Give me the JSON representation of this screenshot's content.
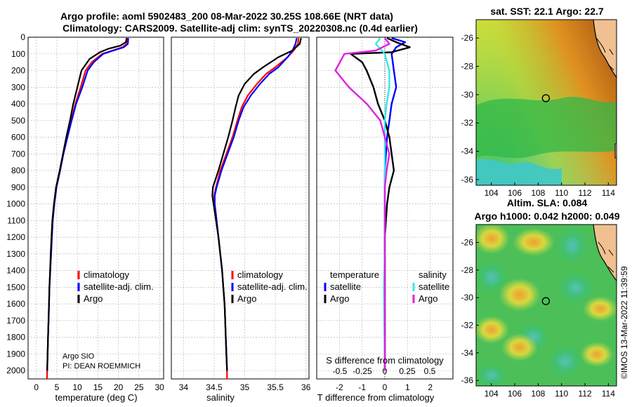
{
  "title_line1": "Argo profile: aoml 5902483_200 08-Mar-2022 30.25S 108.66E (NRT data)",
  "title_line2": "Climatology: CARS2009. Satellite-adj clim: synTS_20220308.nc (0.4d earlier)",
  "copyright": "©IMOS 13-Mar-2022 11:39:59",
  "argo_center": "Argo SIO",
  "argo_pi": "PI: DEAN ROEMMICH",
  "colors": {
    "climatology": "#ff0000",
    "satellite": "#0000ff",
    "argo": "#000000",
    "salinity_argo": "#e020e0",
    "salinity_satellite": "#33e8e8"
  },
  "chart_data": [
    {
      "type": "line",
      "id": "temperature",
      "xlabel": "temperature (deg C)",
      "ylabel": "depth",
      "xlim": [
        -2,
        31
      ],
      "ylim": [
        0,
        2050
      ],
      "xticks": [
        0,
        5,
        10,
        15,
        20,
        25,
        30
      ],
      "yticks": [
        0,
        100,
        200,
        300,
        400,
        500,
        600,
        700,
        800,
        900,
        1000,
        1100,
        1200,
        1300,
        1400,
        1500,
        1600,
        1700,
        1800,
        1900,
        2000
      ],
      "legend": [
        "climatology",
        "satellite-adj. clim.",
        "Argo"
      ],
      "series": [
        {
          "name": "climatology",
          "points": [
            [
              22.1,
              5
            ],
            [
              22.0,
              40
            ],
            [
              21.0,
              60
            ],
            [
              18.5,
              80
            ],
            [
              16.0,
              100
            ],
            [
              13.5,
              150
            ],
            [
              12.0,
              200
            ],
            [
              10.8,
              300
            ],
            [
              9.5,
              400
            ],
            [
              8.5,
              500
            ],
            [
              7.5,
              600
            ],
            [
              6.6,
              700
            ],
            [
              5.8,
              800
            ],
            [
              4.9,
              900
            ],
            [
              4.4,
              1000
            ],
            [
              4.0,
              1100
            ],
            [
              3.8,
              1200
            ],
            [
              3.6,
              1300
            ],
            [
              3.4,
              1400
            ],
            [
              3.2,
              1500
            ],
            [
              3.1,
              1600
            ],
            [
              3.0,
              1700
            ],
            [
              2.85,
              1800
            ],
            [
              2.75,
              1900
            ],
            [
              2.65,
              2000
            ],
            [
              2.6,
              2050
            ]
          ]
        },
        {
          "name": "satellite-adj. clim.",
          "points": [
            [
              22.4,
              5
            ],
            [
              22.3,
              40
            ],
            [
              21.3,
              60
            ],
            [
              18.8,
              80
            ],
            [
              16.3,
              100
            ],
            [
              14.0,
              150
            ],
            [
              12.5,
              200
            ],
            [
              11.2,
              300
            ],
            [
              9.7,
              400
            ],
            [
              8.6,
              500
            ],
            [
              7.6,
              600
            ],
            [
              6.6,
              700
            ],
            [
              5.8,
              800
            ],
            [
              4.9,
              900
            ],
            [
              4.4,
              1000
            ],
            [
              4.0,
              1100
            ],
            [
              3.8,
              1200
            ],
            [
              3.6,
              1300
            ],
            [
              3.4,
              1400
            ],
            [
              3.2,
              1500
            ],
            [
              3.1,
              1600
            ],
            [
              3.0,
              1700
            ],
            [
              2.85,
              1800
            ],
            [
              2.75,
              1900
            ],
            [
              2.65,
              2000
            ]
          ]
        },
        {
          "name": "Argo",
          "points": [
            [
              22.0,
              5
            ],
            [
              21.8,
              30
            ],
            [
              20.5,
              50
            ],
            [
              17.5,
              70
            ],
            [
              15.5,
              90
            ],
            [
              13.0,
              130
            ],
            [
              11.0,
              200
            ],
            [
              10.0,
              300
            ],
            [
              9.0,
              400
            ],
            [
              8.2,
              500
            ],
            [
              7.3,
              600
            ],
            [
              6.5,
              700
            ],
            [
              5.7,
              800
            ],
            [
              4.8,
              900
            ],
            [
              4.3,
              1000
            ],
            [
              3.9,
              1100
            ],
            [
              3.7,
              1200
            ],
            [
              3.5,
              1300
            ],
            [
              3.35,
              1400
            ],
            [
              3.2,
              1500
            ],
            [
              3.1,
              1600
            ],
            [
              2.95,
              1700
            ],
            [
              2.85,
              1800
            ],
            [
              2.75,
              1900
            ],
            [
              2.65,
              2000
            ]
          ]
        }
      ]
    },
    {
      "type": "line",
      "id": "salinity",
      "xlabel": "salinity",
      "xlim": [
        33.8,
        36.05
      ],
      "ylim": [
        0,
        2050
      ],
      "xticks": [
        34,
        34.5,
        35,
        35.5,
        36
      ],
      "xticklabels": [
        "34",
        "34.5",
        "35",
        "35.5",
        "36"
      ],
      "legend": [
        "climatology",
        "satellite-adj. clim.",
        "Argo"
      ],
      "series": [
        {
          "name": "climatology",
          "points": [
            [
              35.88,
              5
            ],
            [
              35.87,
              40
            ],
            [
              35.8,
              80
            ],
            [
              35.7,
              120
            ],
            [
              35.5,
              180
            ],
            [
              35.35,
              220
            ],
            [
              35.2,
              280
            ],
            [
              35.05,
              350
            ],
            [
              34.95,
              420
            ],
            [
              34.88,
              500
            ],
            [
              34.8,
              600
            ],
            [
              34.7,
              700
            ],
            [
              34.6,
              800
            ],
            [
              34.53,
              900
            ],
            [
              34.5,
              950
            ],
            [
              34.51,
              1000
            ],
            [
              34.54,
              1100
            ],
            [
              34.57,
              1200
            ],
            [
              34.6,
              1300
            ],
            [
              34.63,
              1400
            ],
            [
              34.65,
              1500
            ],
            [
              34.67,
              1600
            ],
            [
              34.68,
              1700
            ],
            [
              34.69,
              1800
            ],
            [
              34.7,
              1900
            ],
            [
              34.71,
              2000
            ],
            [
              34.71,
              2050
            ]
          ]
        },
        {
          "name": "satellite-adj. clim.",
          "points": [
            [
              35.85,
              5
            ],
            [
              35.83,
              40
            ],
            [
              35.78,
              80
            ],
            [
              35.7,
              120
            ],
            [
              35.55,
              180
            ],
            [
              35.4,
              220
            ],
            [
              35.25,
              280
            ],
            [
              35.1,
              350
            ],
            [
              34.98,
              420
            ],
            [
              34.9,
              500
            ],
            [
              34.82,
              600
            ],
            [
              34.72,
              700
            ],
            [
              34.62,
              800
            ],
            [
              34.54,
              900
            ],
            [
              34.51,
              950
            ],
            [
              34.51,
              1000
            ],
            [
              34.54,
              1100
            ],
            [
              34.57,
              1200
            ],
            [
              34.6,
              1300
            ],
            [
              34.63,
              1400
            ],
            [
              34.65,
              1500
            ],
            [
              34.67,
              1600
            ],
            [
              34.68,
              1700
            ],
            [
              34.69,
              1800
            ],
            [
              34.7,
              1900
            ],
            [
              34.71,
              2000
            ]
          ]
        },
        {
          "name": "Argo",
          "points": [
            [
              35.92,
              5
            ],
            [
              35.9,
              40
            ],
            [
              35.78,
              80
            ],
            [
              35.55,
              120
            ],
            [
              35.3,
              180
            ],
            [
              35.15,
              220
            ],
            [
              35.0,
              280
            ],
            [
              34.9,
              350
            ],
            [
              34.85,
              420
            ],
            [
              34.8,
              500
            ],
            [
              34.73,
              600
            ],
            [
              34.65,
              700
            ],
            [
              34.57,
              800
            ],
            [
              34.48,
              900
            ],
            [
              34.47,
              950
            ],
            [
              34.49,
              1000
            ],
            [
              34.53,
              1100
            ],
            [
              34.57,
              1200
            ],
            [
              34.6,
              1300
            ],
            [
              34.63,
              1400
            ],
            [
              34.65,
              1500
            ],
            [
              34.67,
              1600
            ],
            [
              34.68,
              1700
            ],
            [
              34.69,
              1800
            ],
            [
              34.7,
              1900
            ],
            [
              34.71,
              2000
            ]
          ]
        }
      ]
    },
    {
      "type": "line",
      "id": "differences",
      "xlabel": "T difference from climatology",
      "xlabel2": "S difference from climatology",
      "xlim": [
        -3,
        3
      ],
      "ylim": [
        0,
        2050
      ],
      "xticks": [
        -2,
        -1,
        0,
        1,
        2
      ],
      "xticks_S": [
        "-0.5",
        "-0.25",
        "0",
        "0.25",
        "0.5"
      ],
      "legend_temperature": {
        "title": "temperature",
        "items": [
          "satellite",
          "Argo"
        ]
      },
      "legend_salinity": {
        "title": "salinity",
        "items": [
          "satellite",
          "Argo"
        ]
      },
      "series": [
        {
          "name": "temperature satellite",
          "points": [
            [
              0.3,
              5
            ],
            [
              0.9,
              30
            ],
            [
              0.5,
              60
            ],
            [
              0.3,
              100
            ],
            [
              0.4,
              200
            ],
            [
              0.5,
              300
            ],
            [
              0.3,
              400
            ],
            [
              0.2,
              500
            ],
            [
              0.1,
              600
            ],
            [
              0.05,
              700
            ],
            [
              0.0,
              800
            ],
            [
              0.0,
              900
            ],
            [
              0.0,
              1000
            ],
            [
              0.0,
              1200
            ],
            [
              0.0,
              1500
            ],
            [
              0.0,
              2000
            ]
          ]
        },
        {
          "name": "temperature Argo",
          "points": [
            [
              0.1,
              5
            ],
            [
              0.5,
              30
            ],
            [
              1.1,
              60
            ],
            [
              0.3,
              90
            ],
            [
              -1.5,
              100
            ],
            [
              -1.0,
              150
            ],
            [
              -0.8,
              200
            ],
            [
              -0.5,
              300
            ],
            [
              -0.3,
              400
            ],
            [
              0.0,
              500
            ],
            [
              0.2,
              600
            ],
            [
              0.3,
              700
            ],
            [
              0.4,
              800
            ],
            [
              0.2,
              900
            ],
            [
              0.1,
              1000
            ],
            [
              0.0,
              1200
            ],
            [
              0.0,
              1500
            ],
            [
              0.0,
              2000
            ]
          ]
        },
        {
          "name": "salinity satellite",
          "points": [
            [
              -0.05,
              5
            ],
            [
              -0.1,
              40
            ],
            [
              0.0,
              100
            ],
            [
              0.05,
              200
            ],
            [
              0.05,
              300
            ],
            [
              0.02,
              400
            ],
            [
              0.0,
              500
            ],
            [
              0.0,
              600
            ],
            [
              0.0,
              700
            ],
            [
              0.0,
              800
            ],
            [
              0.0,
              1000
            ],
            [
              0.0,
              1300
            ],
            [
              -0.01,
              1500
            ],
            [
              0.0,
              2000
            ]
          ]
        },
        {
          "name": "salinity Argo",
          "points": [
            [
              0.0,
              5
            ],
            [
              0.05,
              40
            ],
            [
              -0.1,
              80
            ],
            [
              -0.45,
              100
            ],
            [
              -0.55,
              200
            ],
            [
              -0.4,
              300
            ],
            [
              -0.2,
              400
            ],
            [
              -0.05,
              500
            ],
            [
              0.0,
              600
            ],
            [
              0.05,
              700
            ],
            [
              0.02,
              800
            ],
            [
              0.0,
              900
            ],
            [
              0.0,
              1000
            ],
            [
              0.0,
              1300
            ],
            [
              0.0,
              1500
            ],
            [
              0.0,
              2000
            ]
          ]
        }
      ]
    },
    {
      "type": "heatmap",
      "id": "sst_map",
      "title": "sat. SST: 22.1 Argo: 22.7",
      "xlim": [
        102.7,
        114.7
      ],
      "ylim": [
        -36.4,
        -24.7
      ],
      "xticks": [
        104,
        106,
        108,
        110,
        112,
        114
      ],
      "yticks": [
        -26,
        -28,
        -30,
        -32,
        -34,
        -36
      ],
      "marker": [
        108.66,
        -30.25
      ]
    },
    {
      "type": "heatmap",
      "id": "sla_map",
      "title_line1": "Altim. SLA: 0.084",
      "title_line2": "Argo h1000: 0.042 h2000: 0.049",
      "xlim": [
        102.7,
        114.7
      ],
      "ylim": [
        -36.4,
        -24.7
      ],
      "xticks": [
        104,
        106,
        108,
        110,
        112,
        114
      ],
      "yticks": [
        -26,
        -28,
        -30,
        -32,
        -34,
        -36
      ],
      "marker": [
        108.66,
        -30.25
      ]
    }
  ]
}
